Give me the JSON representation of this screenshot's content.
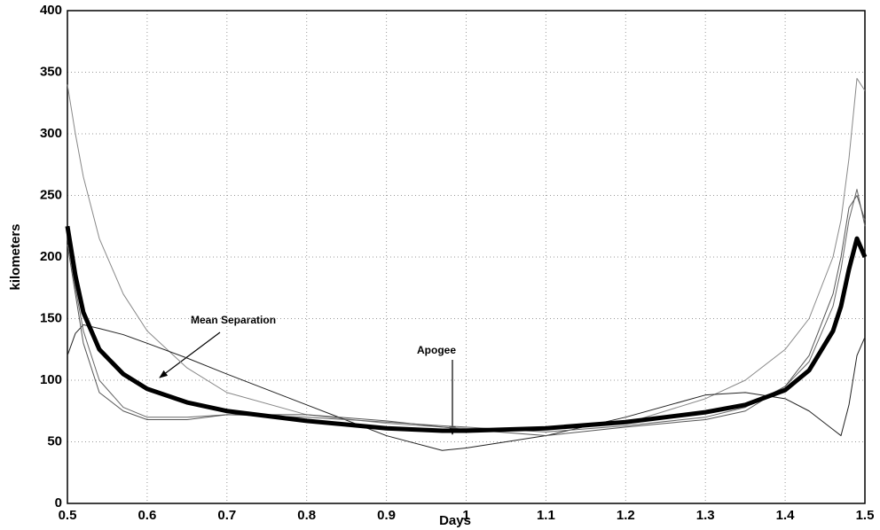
{
  "chart_data": {
    "type": "line",
    "x_label": "Days",
    "y_label": "kilometers",
    "annotations": [
      "Mean Separation",
      "Apogee"
    ],
    "x": [
      0.5,
      0.51,
      0.52,
      0.54,
      0.57,
      0.6,
      0.65,
      0.7,
      0.8,
      0.9,
      0.97,
      1.0,
      1.1,
      1.2,
      1.3,
      1.35,
      1.4,
      1.43,
      1.46,
      1.47,
      1.48,
      1.49,
      1.5
    ],
    "series": [
      {
        "color": "#888888",
        "width": 1,
        "values": [
          340,
          300,
          265,
          215,
          170,
          140,
          110,
          90,
          72,
          65,
          62,
          61,
          60,
          65,
          85,
          100,
          125,
          150,
          200,
          230,
          280,
          345,
          335
        ]
      },
      {
        "color": "#222222",
        "width": 1,
        "values": [
          120,
          138,
          145,
          142,
          137,
          130,
          118,
          105,
          80,
          55,
          43,
          45,
          55,
          70,
          88,
          90,
          85,
          75,
          60,
          55,
          80,
          120,
          135
        ]
      },
      {
        "color": "#666666",
        "width": 1,
        "values": [
          215,
          175,
          140,
          100,
          78,
          70,
          70,
          72,
          70,
          66,
          63,
          62,
          58,
          63,
          70,
          78,
          95,
          115,
          160,
          190,
          230,
          255,
          225
        ]
      },
      {
        "color": "#555555",
        "width": 1,
        "values": [
          210,
          170,
          130,
          90,
          75,
          68,
          68,
          72,
          72,
          67,
          62,
          60,
          55,
          62,
          68,
          75,
          95,
          120,
          170,
          200,
          240,
          250,
          230
        ]
      },
      {
        "color": "#000000",
        "width": 5,
        "values": [
          225,
          185,
          155,
          125,
          105,
          93,
          82,
          75,
          67,
          61,
          59,
          59,
          61,
          66,
          74,
          80,
          92,
          108,
          140,
          160,
          190,
          215,
          200
        ]
      }
    ],
    "xlim": [
      0.5,
      1.5
    ],
    "ylim": [
      0,
      400
    ],
    "xticks": [
      0.5,
      0.6,
      0.7,
      0.8,
      0.9,
      1,
      1.1,
      1.2,
      1.3,
      1.4,
      1.5
    ],
    "yticks": [
      0,
      50,
      100,
      150,
      200,
      250,
      300,
      350,
      400
    ],
    "grid": true
  }
}
